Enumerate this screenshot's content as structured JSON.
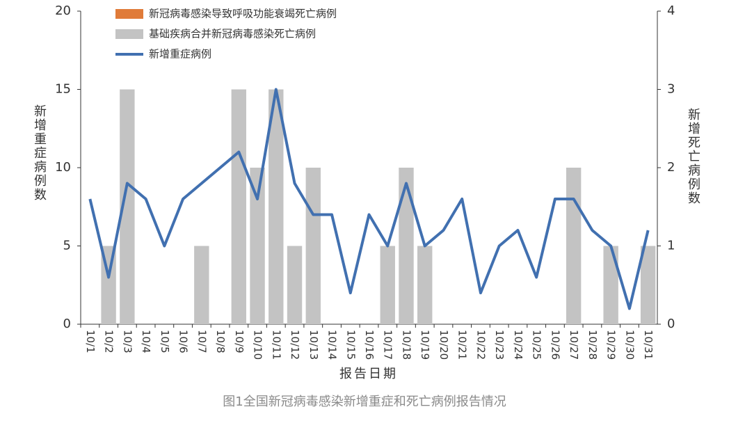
{
  "chart_data": {
    "type": "bar_line",
    "caption": "图1全国新冠病毒感染新增重症和死亡病例报告情况",
    "x_label": "报告日期",
    "y_label": "新增重症病例数",
    "y2_label": "新增死亡病例数",
    "categories": [
      "10/1",
      "10/2",
      "10/3",
      "10/4",
      "10/5",
      "10/6",
      "10/7",
      "10/8",
      "10/9",
      "10/10",
      "10/11",
      "10/12",
      "10/13",
      "10/14",
      "10/15",
      "10/16",
      "10/17",
      "10/18",
      "10/19",
      "10/20",
      "10/21",
      "10/22",
      "10/23",
      "10/24",
      "10/25",
      "10/26",
      "10/27",
      "10/28",
      "10/29",
      "10/30",
      "10/31"
    ],
    "series": [
      {
        "name": "新冠病毒感染导致呼吸功能衰竭死亡病例",
        "color": "#e07b39",
        "kind": "bar",
        "axis": "y2",
        "values": [
          0,
          0,
          0,
          0,
          0,
          0,
          0,
          0,
          0,
          0,
          0,
          0,
          0,
          0,
          0,
          0,
          0,
          0,
          0,
          0,
          0,
          0,
          0,
          0,
          0,
          0,
          0,
          0,
          0,
          0,
          0
        ]
      },
      {
        "name": "基础疾病合并新冠病毒感染死亡病例",
        "color": "#c3c3c3",
        "kind": "bar",
        "axis": "y2",
        "values": [
          0,
          1,
          3,
          0,
          0,
          0,
          1,
          0,
          3,
          2,
          3,
          1,
          2,
          0,
          0,
          0,
          1,
          2,
          1,
          0,
          0,
          0,
          0,
          0,
          0,
          0,
          2,
          0,
          1,
          0,
          1
        ]
      },
      {
        "name": "新增重症病例",
        "color": "#4170b0",
        "kind": "line",
        "axis": "y",
        "values": [
          8,
          3,
          9,
          8,
          5,
          8,
          9,
          10,
          11,
          8,
          15,
          9,
          7,
          7,
          2,
          7,
          5,
          9,
          5,
          6,
          8,
          2,
          5,
          6,
          3,
          8,
          8,
          6,
          5,
          1,
          6
        ]
      }
    ],
    "ylim": [
      0,
      20
    ],
    "yticks": [
      0,
      5,
      10,
      15,
      20
    ],
    "y2lim": [
      0,
      4
    ],
    "y2ticks": [
      0,
      1,
      2,
      3,
      4
    ],
    "grid": false
  }
}
